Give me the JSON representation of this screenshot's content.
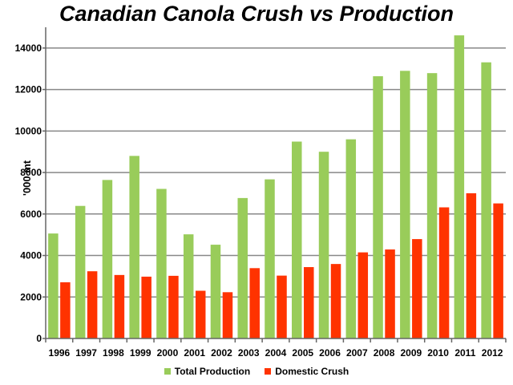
{
  "chart_data": {
    "type": "bar",
    "title": "Canadian Canola Crush vs Production",
    "xlabel": "",
    "ylabel": "'000 mt",
    "ylim": [
      0,
      15000
    ],
    "yticks": [
      0,
      2000,
      4000,
      6000,
      8000,
      10000,
      12000,
      14000
    ],
    "grid": true,
    "legend_position": "bottom",
    "categories": [
      "1996",
      "1997",
      "1998",
      "1999",
      "2000",
      "2001",
      "2002",
      "2003",
      "2004",
      "2005",
      "2006",
      "2007",
      "2008",
      "2009",
      "2010",
      "2011",
      "2012"
    ],
    "series": [
      {
        "name": "Total Production",
        "color": "#99cc5a",
        "values": [
          5060,
          6390,
          7640,
          8800,
          7210,
          5020,
          4520,
          6770,
          7670,
          9490,
          9000,
          9600,
          12640,
          12900,
          12790,
          14610,
          13310
        ]
      },
      {
        "name": "Domestic Crush",
        "color": "#ff3300",
        "values": [
          2710,
          3240,
          3060,
          2980,
          3020,
          2300,
          2230,
          3390,
          3030,
          3440,
          3590,
          4150,
          4290,
          4790,
          6320,
          7000,
          6510
        ]
      }
    ]
  }
}
